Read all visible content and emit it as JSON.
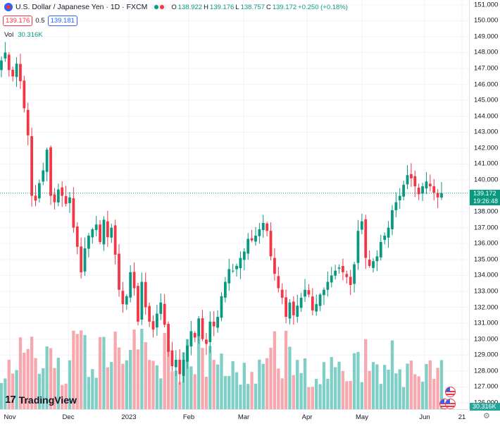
{
  "header": {
    "title": "U.S. Dollar / Japanese Yen · 1D · FXCM",
    "ohlc": [
      {
        "k": "O",
        "v": "138.922"
      },
      {
        "k": "H",
        "v": "139.176"
      },
      {
        "k": "L",
        "v": "138.757"
      },
      {
        "k": "C",
        "v": "139.172"
      },
      {
        "k": "",
        "v": "+0.250 (+0.18%)"
      }
    ]
  },
  "quote": {
    "sell": "139.176",
    "spread": "0.5",
    "buy": "139.181"
  },
  "volume_legend": {
    "label": "Vol",
    "value": "30.316K"
  },
  "price_badge": {
    "price": "139.172",
    "countdown": "19:26:48"
  },
  "volume_badge": "30.316K",
  "brand": {
    "name": "TradingView",
    "mark": "17"
  },
  "colors": {
    "up": "#089981",
    "down": "#f23645",
    "vol_up": "#7fcfc6",
    "vol_down": "#f7a8ae",
    "grid": "#f0f3fa",
    "last_line": "#089981"
  },
  "icons": [
    "symbol-icon",
    "us-flag-icon",
    "settings-gear-icon",
    "market-status-icon"
  ],
  "chart_data": {
    "type": "candlestick",
    "title": "U.S. Dollar / Japanese Yen · 1D · FXCM",
    "y_ticks": [
      "151.000",
      "150.000",
      "149.000",
      "148.000",
      "147.000",
      "146.000",
      "145.000",
      "144.000",
      "143.000",
      "142.000",
      "141.000",
      "140.000",
      "138.000",
      "137.000",
      "136.000",
      "135.000",
      "134.000",
      "133.000",
      "132.000",
      "131.000",
      "130.000",
      "129.000",
      "128.000",
      "127.000",
      "126.000"
    ],
    "x_ticks": [
      "Nov",
      "Dec",
      "2023",
      "Feb",
      "Mar",
      "Apr",
      "May",
      "Jun",
      "21"
    ],
    "ylim": [
      125.6,
      151.3
    ],
    "last_price": 139.172,
    "candles_approx_close": [
      147.5,
      148.0,
      146.9,
      146.5,
      147.3,
      146.2,
      144.5,
      142.8,
      139.0,
      138.7,
      139.8,
      140.6,
      141.9,
      139.0,
      138.6,
      139.4,
      139.0,
      138.5,
      138.9,
      137.0,
      135.8,
      134.2,
      135.7,
      136.5,
      136.9,
      137.2,
      136.1,
      137.5,
      136.4,
      137.0,
      135.3,
      133.1,
      132.2,
      132.7,
      134.2,
      133.2,
      131.1,
      133.6,
      132.0,
      131.1,
      130.6,
      131.6,
      132.3,
      130.9,
      129.2,
      128.3,
      128.7,
      127.8,
      128.7,
      129.6,
      130.5,
      130.1,
      131.3,
      130.0,
      129.7,
      131.1,
      130.8,
      131.4,
      132.7,
      133.6,
      134.4,
      134.3,
      134.6,
      135.1,
      135.5,
      136.3,
      136.2,
      136.5,
      136.9,
      137.3,
      136.8,
      135.2,
      134.1,
      133.2,
      132.6,
      131.4,
      132.3,
      131.5,
      132.1,
      132.6,
      133.1,
      132.8,
      131.8,
      132.2,
      132.8,
      133.1,
      133.6,
      134.0,
      134.3,
      134.5,
      134.2,
      133.9,
      133.4,
      134.7,
      136.8,
      137.4,
      135.1,
      134.6,
      134.9,
      135.2,
      136.1,
      136.5,
      137.0,
      138.1,
      138.6,
      139.0,
      139.7,
      140.3,
      140.1,
      139.6,
      139.1,
      139.6,
      139.9,
      139.6,
      139.2,
      138.9,
      139.172
    ],
    "volume": "30.316K"
  }
}
